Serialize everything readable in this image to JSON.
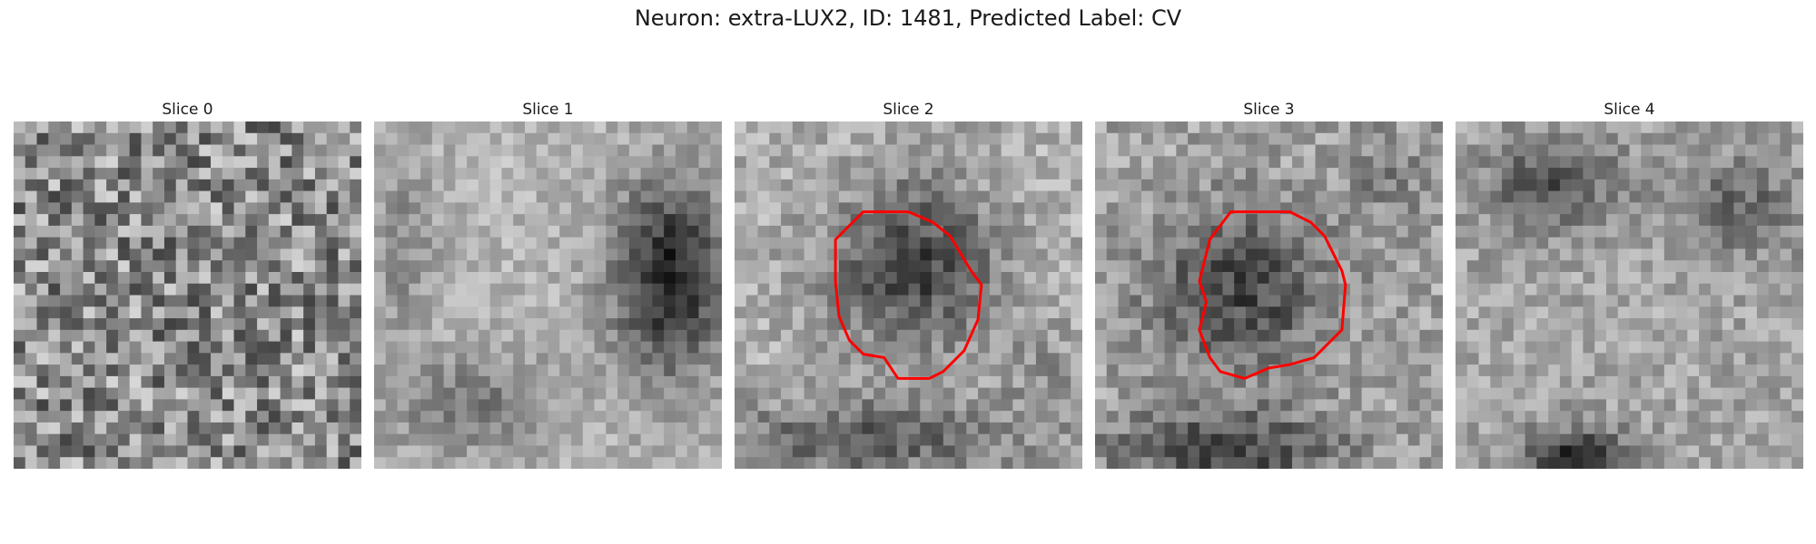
{
  "figure": {
    "title": "Neuron: extra-LUX2, ID: 1481, Predicted Label: CV"
  },
  "panels": [
    {
      "title": "Slice 0",
      "image": "grayscale-noise-patch",
      "has_contour": false
    },
    {
      "title": "Slice 1",
      "image": "grayscale-patch-dark-blob-right",
      "has_contour": false
    },
    {
      "title": "Slice 2",
      "image": "grayscale-patch-dark-center-blob",
      "has_contour": true,
      "contour_color": "#ff0000"
    },
    {
      "title": "Slice 3",
      "image": "grayscale-patch-dark-center-blob",
      "has_contour": true,
      "contour_color": "#ff0000"
    },
    {
      "title": "Slice 4",
      "image": "grayscale-patch-diffuse",
      "has_contour": false
    }
  ]
}
